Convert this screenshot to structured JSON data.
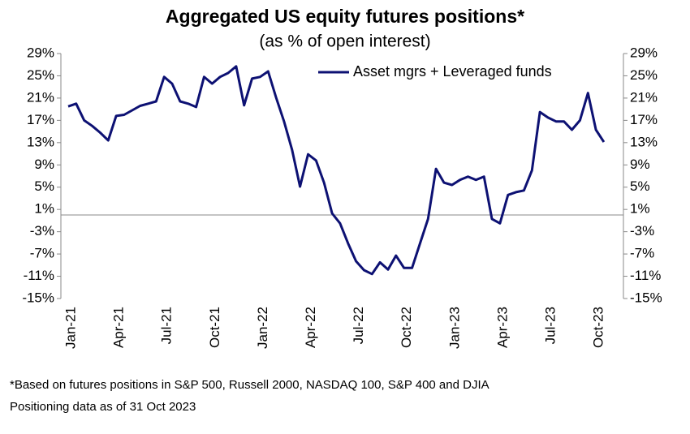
{
  "chart_data": {
    "type": "line",
    "title": "Aggregated US equity futures positions*",
    "subtitle": "(as % of open interest)",
    "footnotes": [
      "*Based on futures positions in S&P 500, Russell 2000, NASDAQ 100, S&P 400 and DJIA",
      "Positioning data as of 31 Oct 2023"
    ],
    "categories": [
      "Jan-21",
      null,
      null,
      null,
      null,
      null,
      "Apr-21",
      null,
      null,
      null,
      null,
      null,
      "Jul-21",
      null,
      null,
      null,
      null,
      null,
      "Oct-21",
      null,
      null,
      null,
      null,
      null,
      "Jan-22",
      null,
      null,
      null,
      null,
      null,
      "Apr-22",
      null,
      null,
      null,
      null,
      null,
      "Jul-22",
      null,
      null,
      null,
      null,
      null,
      "Oct-22",
      null,
      null,
      null,
      null,
      null,
      "Jan-23",
      null,
      null,
      null,
      null,
      null,
      "Apr-23",
      null,
      null,
      null,
      null,
      null,
      "Jul-23",
      null,
      null,
      null,
      null,
      null,
      "Oct-23",
      null
    ],
    "series": [
      {
        "name": "Asset mgrs + Leveraged funds",
        "color": "#0d1173",
        "values": [
          19.5,
          20,
          17,
          16,
          14.8,
          13.4,
          17.8,
          18,
          18.8,
          19.6,
          20,
          20.4,
          24.8,
          23.6,
          20.4,
          20,
          19.4,
          24.8,
          23.6,
          24.8,
          25.5,
          26.7,
          19.7,
          24.5,
          24.8,
          25.8,
          21.1,
          16.8,
          11.7,
          5.1,
          10.9,
          9.8,
          5.8,
          0.3,
          -1.5,
          -5.1,
          -8.3,
          -9.9,
          -10.6,
          -8.5,
          -9.8,
          -7.3,
          -9.5,
          -9.5,
          -5.1,
          -0.7,
          8.3,
          5.8,
          5.4,
          6.3,
          6.9,
          6.3,
          6.9,
          -0.7,
          -1.5,
          3.6,
          4.1,
          4.4,
          8,
          18.5,
          17.5,
          16.8,
          16.8,
          15.3,
          17,
          21.9,
          15.3,
          13.1
        ]
      }
    ],
    "ylim": [
      -15,
      29
    ],
    "yticks": [
      {
        "value": 29,
        "label": "29%"
      },
      {
        "value": 25,
        "label": "25%"
      },
      {
        "value": 21,
        "label": "21%"
      },
      {
        "value": 17,
        "label": "17%"
      },
      {
        "value": 13,
        "label": "13%"
      },
      {
        "value": 9,
        "label": "9%"
      },
      {
        "value": 5,
        "label": "5%"
      },
      {
        "value": 1,
        "label": "1%"
      },
      {
        "value": -3,
        "label": "-3%"
      },
      {
        "value": -7,
        "label": "-7%"
      },
      {
        "value": -11,
        "label": "-11%"
      },
      {
        "value": -15,
        "label": "-15%"
      }
    ],
    "y2lim": [
      -15,
      29
    ],
    "y2ticks": [
      {
        "value": 29,
        "label": "29%"
      },
      {
        "value": 25,
        "label": "25%"
      },
      {
        "value": 21,
        "label": "21%"
      },
      {
        "value": 17,
        "label": "17%"
      },
      {
        "value": 13,
        "label": "13%"
      },
      {
        "value": 9,
        "label": "9%"
      },
      {
        "value": 5,
        "label": "5%"
      },
      {
        "value": 1,
        "label": "1%"
      },
      {
        "value": -3,
        "label": "-3%"
      },
      {
        "value": -7,
        "label": "-7%"
      },
      {
        "value": -11,
        "label": "-11%"
      },
      {
        "value": -15,
        "label": "-15%"
      }
    ],
    "legend": "upper right"
  }
}
